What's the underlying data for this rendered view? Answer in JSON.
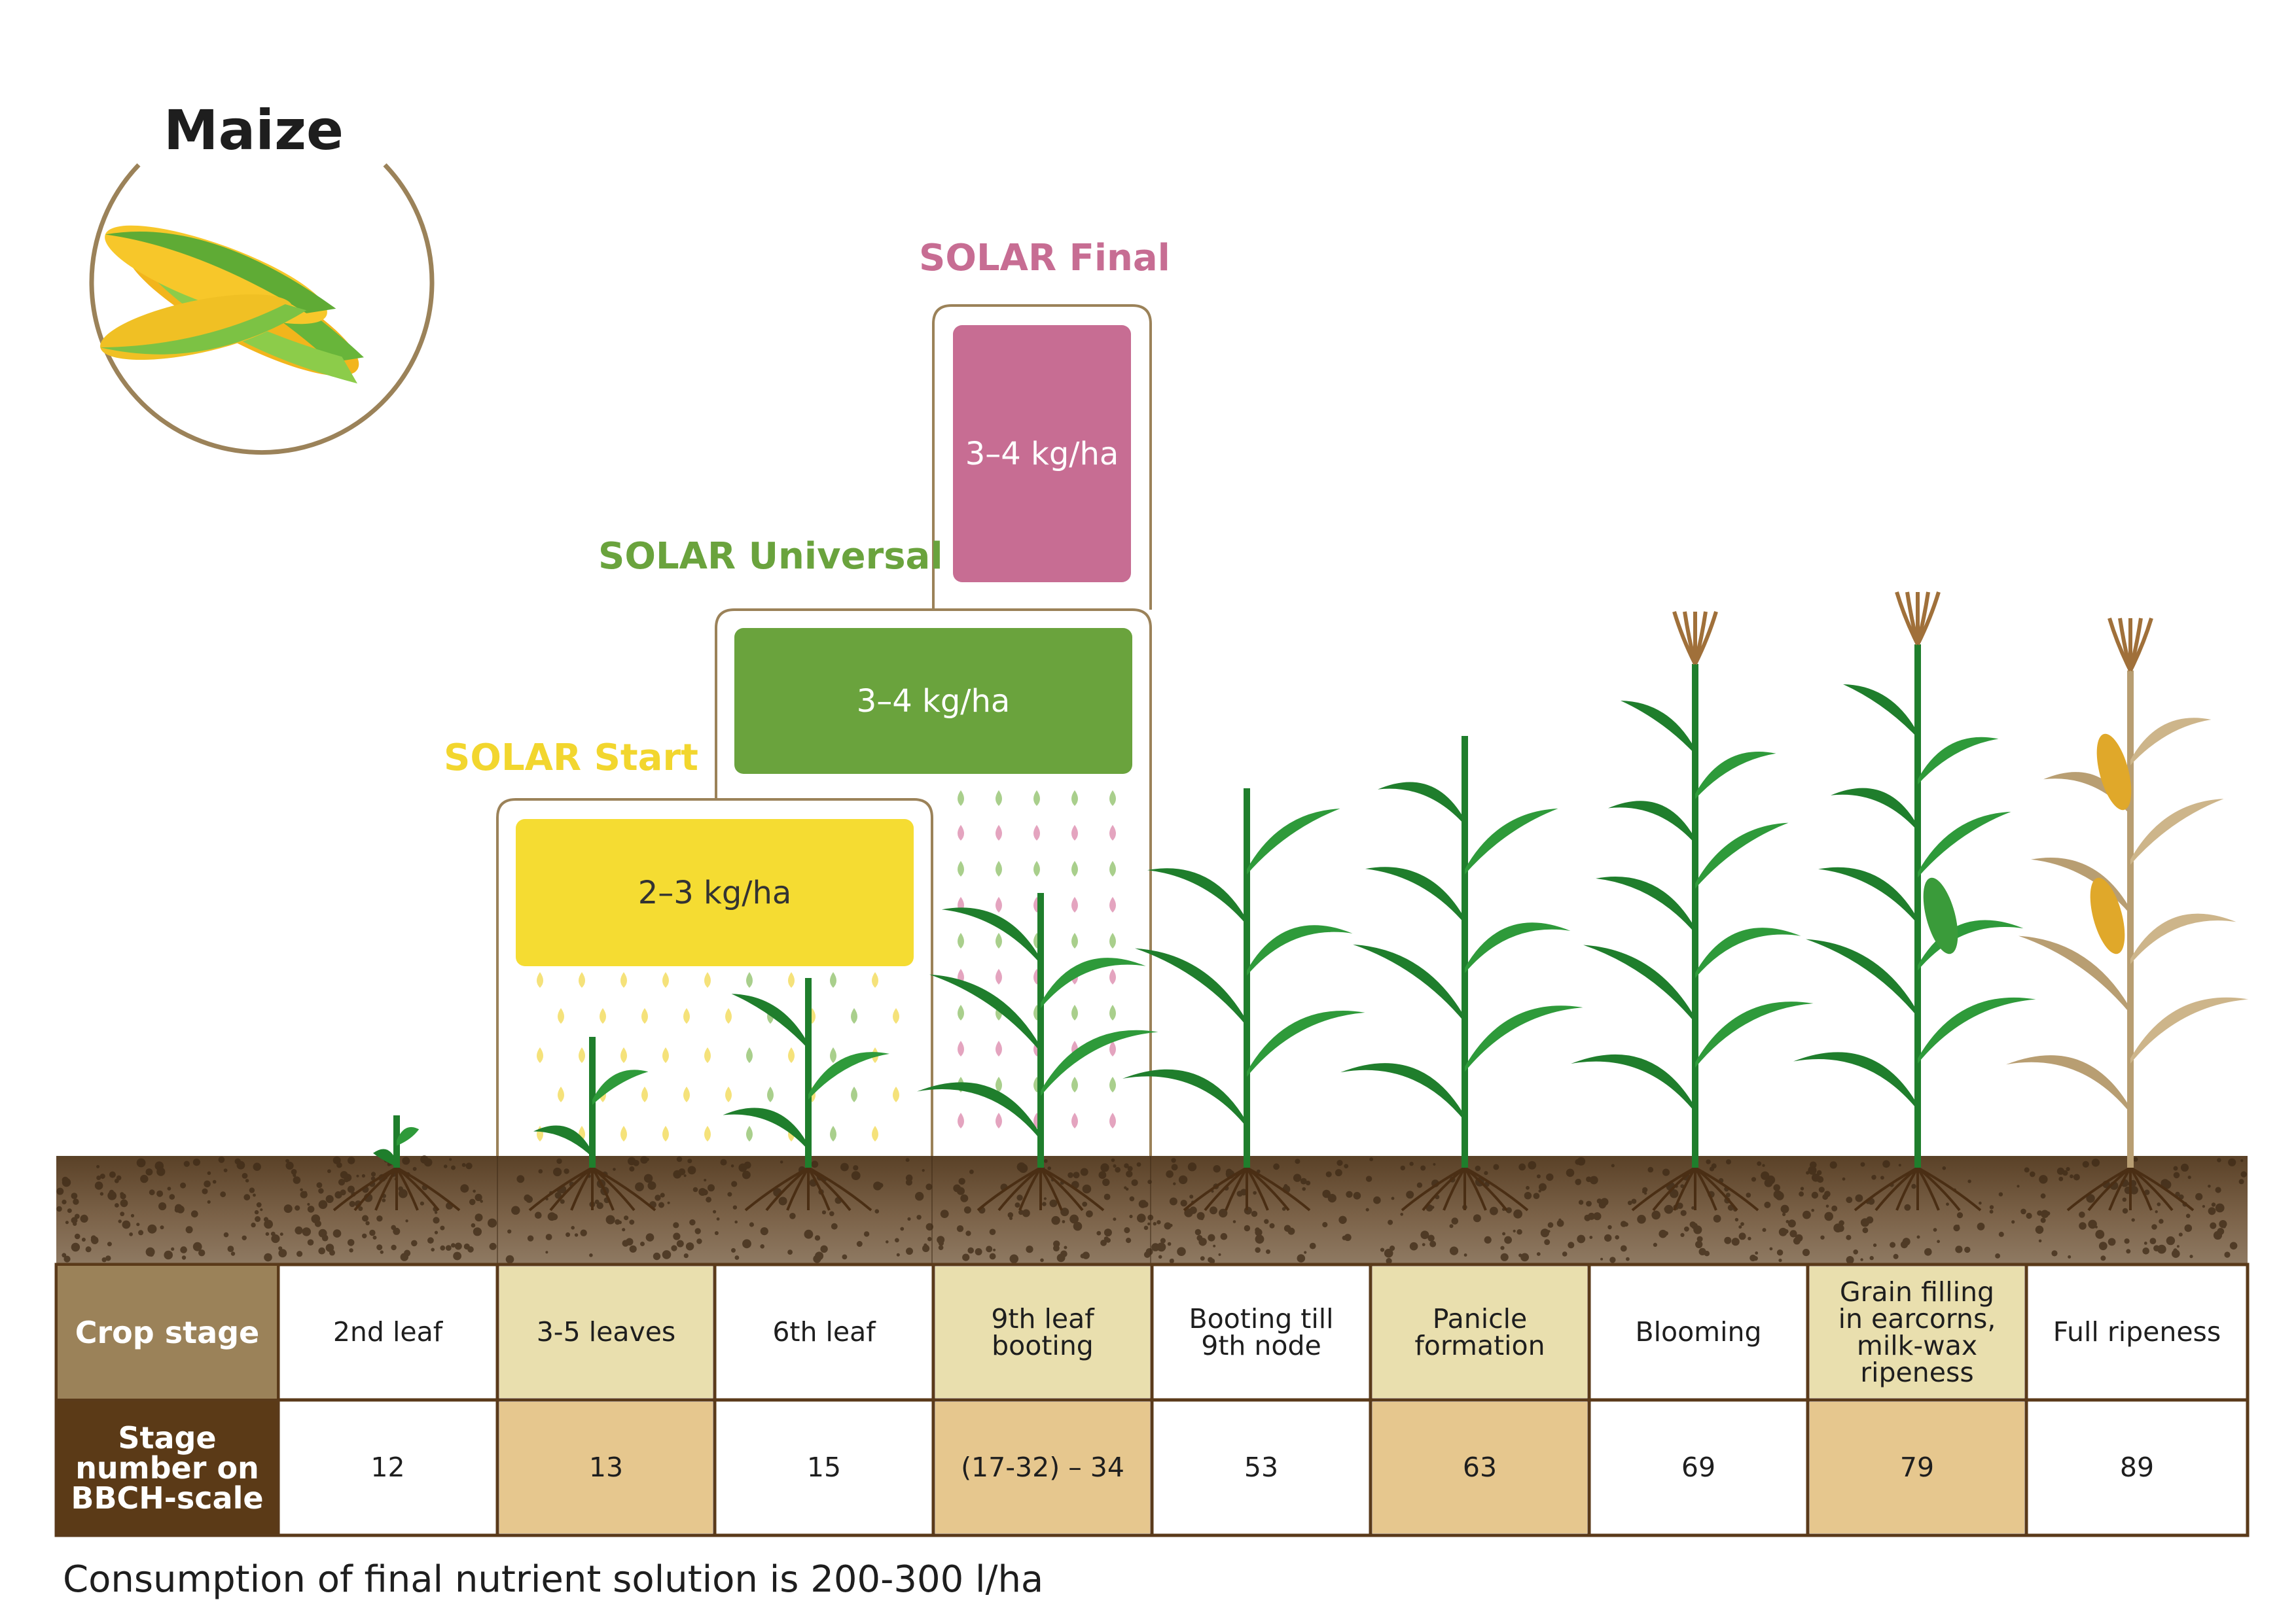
{
  "header": {
    "title": "Maize"
  },
  "products": [
    {
      "name": "SOLAR Start",
      "dose": "2–3 kg/ha",
      "color": "#f5dc32"
    },
    {
      "name": "SOLAR Universal",
      "dose": "3–4 kg/ha",
      "color": "#6aa33d"
    },
    {
      "name": "SOLAR Final",
      "dose": "3–4 kg/ha",
      "color": "#c76d93"
    }
  ],
  "table": {
    "row_labels": {
      "crop_stage": "Crop stage",
      "bbch": "Stage number on BBCH-scale"
    },
    "crop_stages": [
      "2nd leaf",
      "3-5 leaves",
      "6th leaf",
      "9th leaf booting",
      "Booting till 9th node",
      "Panicle formation",
      "Blooming",
      "Grain filling in earcorns, milk-wax ripeness",
      "Full ripeness"
    ],
    "bbch": [
      "12",
      "13",
      "15",
      "(17-32) – 34",
      "53",
      "63",
      "69",
      "79",
      "89"
    ]
  },
  "footer": {
    "note": "Consumption of final nutrient solution is 200-300 l/ha"
  },
  "colors": {
    "soil": "#6b5338",
    "frame": "#9b8259",
    "table_border": "#5a3a1a",
    "label_bg_1": "#9b8259",
    "label_bg_2": "#5b3a17",
    "shade_1": "#e9dfae",
    "shade_2": "#e6c78e",
    "leaf": "#2e9a3a",
    "dry_leaf": "#cdb58a"
  }
}
